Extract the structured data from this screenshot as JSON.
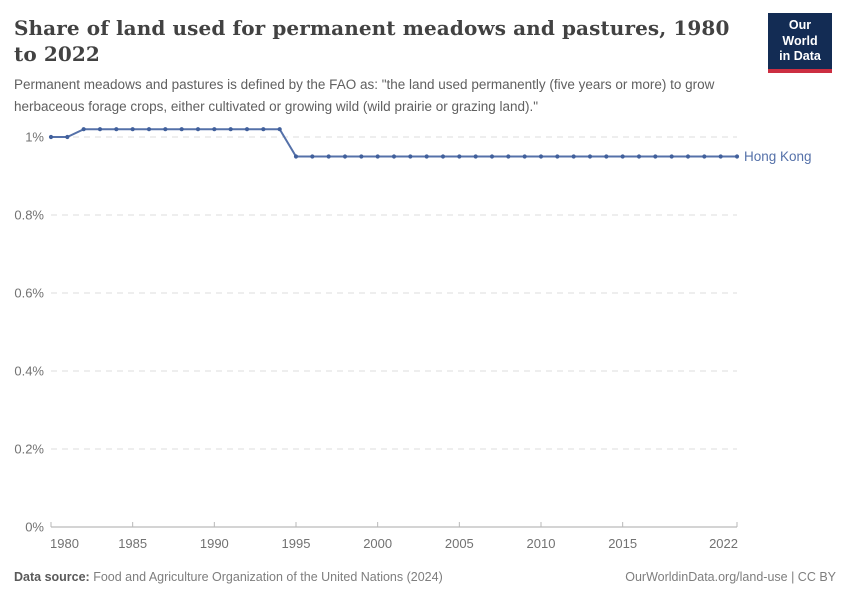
{
  "header": {
    "title": "Share of land used for permanent meadows and pastures, 1980 to 2022",
    "subtitle": "Permanent meadows and pastures is defined by the FAO as: \"the land used permanently (five years or more) to grow herbaceous forage crops, either cultivated or growing wild (wild prairie or grazing land).\"",
    "logo": {
      "line1": "Our World",
      "line2": "in Data",
      "bg_color": "#132c54",
      "accent_color": "#cc2e41"
    }
  },
  "chart_data": {
    "type": "line",
    "title": "Share of land used for permanent meadows and pastures, 1980 to 2022",
    "xlabel": "",
    "ylabel": "",
    "xlim": [
      1980,
      2022
    ],
    "ylim": [
      0,
      1.05
    ],
    "grid": "horizontal-dashed",
    "legend_position": "end-of-line-label",
    "x_ticks": [
      1980,
      1985,
      1990,
      1995,
      2000,
      2005,
      2010,
      2015,
      2022
    ],
    "y_ticks": [
      {
        "value": 0,
        "label": "0%"
      },
      {
        "value": 0.2,
        "label": "0.2%"
      },
      {
        "value": 0.4,
        "label": "0.4%"
      },
      {
        "value": 0.6,
        "label": "0.6%"
      },
      {
        "value": 0.8,
        "label": "0.8%"
      },
      {
        "value": 1.0,
        "label": "1%"
      }
    ],
    "series": [
      {
        "name": "Hong Kong",
        "color": "#5571a9",
        "dot_color": "#41609c",
        "x": [
          1980,
          1981,
          1982,
          1983,
          1984,
          1985,
          1986,
          1987,
          1988,
          1989,
          1990,
          1991,
          1992,
          1993,
          1994,
          1995,
          1996,
          1997,
          1998,
          1999,
          2000,
          2001,
          2002,
          2003,
          2004,
          2005,
          2006,
          2007,
          2008,
          2009,
          2010,
          2011,
          2012,
          2013,
          2014,
          2015,
          2016,
          2017,
          2018,
          2019,
          2020,
          2021,
          2022
        ],
        "values": [
          1.0,
          1.0,
          1.02,
          1.02,
          1.02,
          1.02,
          1.02,
          1.02,
          1.02,
          1.02,
          1.02,
          1.02,
          1.02,
          1.02,
          1.02,
          0.95,
          0.95,
          0.95,
          0.95,
          0.95,
          0.95,
          0.95,
          0.95,
          0.95,
          0.95,
          0.95,
          0.95,
          0.95,
          0.95,
          0.95,
          0.95,
          0.95,
          0.95,
          0.95,
          0.95,
          0.95,
          0.95,
          0.95,
          0.95,
          0.95,
          0.95,
          0.95,
          0.95
        ]
      }
    ],
    "colors": {
      "gridline": "#dedede",
      "axis_line": "#a9a9a9",
      "tick_mark": "#b8b8b8",
      "tick_label": "#727272"
    }
  },
  "footer": {
    "source_label": "Data source:",
    "source_text": "Food and Agriculture Organization of the United Nations (2024)",
    "credit": "OurWorldinData.org/land-use | CC BY"
  }
}
